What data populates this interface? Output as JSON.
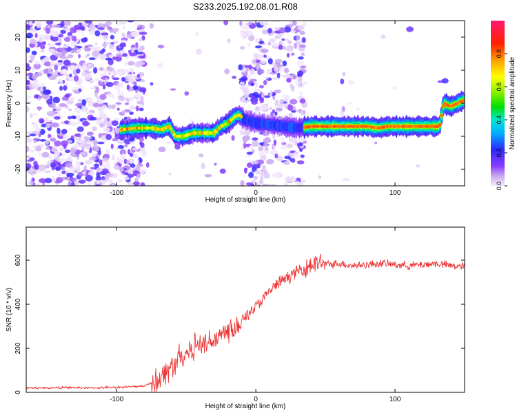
{
  "chart_data": [
    {
      "type": "heatmap",
      "title": "S233.2025.192.08.01.R08",
      "xlabel": "Height of straight line (km)",
      "ylabel": "Frequency (Hz)",
      "xlim": [
        -165,
        150
      ],
      "ylim": [
        -25,
        25
      ],
      "x_ticks": [
        -100,
        0,
        100
      ],
      "y_ticks": [
        -20,
        -10,
        0,
        10,
        20
      ],
      "colorbar": {
        "label": "Normalized spectral amplitude",
        "range": [
          0,
          1
        ],
        "ticks": [
          "0.0",
          "0.2",
          "0.4",
          "0.6",
          "0.8"
        ]
      },
      "ridge": [
        {
          "x": -97,
          "y": -8
        },
        {
          "x": -85,
          "y": -7.5
        },
        {
          "x": -75,
          "y": -7.5
        },
        {
          "x": -68,
          "y": -8
        },
        {
          "x": -62,
          "y": -7
        },
        {
          "x": -58,
          "y": -10
        },
        {
          "x": -52,
          "y": -10
        },
        {
          "x": -45,
          "y": -9
        },
        {
          "x": -38,
          "y": -9
        },
        {
          "x": -30,
          "y": -9
        },
        {
          "x": -25,
          "y": -7
        },
        {
          "x": -20,
          "y": -6
        },
        {
          "x": -15,
          "y": -4
        },
        {
          "x": -12,
          "y": -3.5
        },
        {
          "x": -8,
          "y": -5
        },
        {
          "x": 0,
          "y": -6
        },
        {
          "x": 10,
          "y": -6.5
        },
        {
          "x": 20,
          "y": -7
        },
        {
          "x": 30,
          "y": -7.5
        },
        {
          "x": 40,
          "y": -7
        },
        {
          "x": 50,
          "y": -7
        },
        {
          "x": 60,
          "y": -7
        },
        {
          "x": 70,
          "y": -7
        },
        {
          "x": 80,
          "y": -7
        },
        {
          "x": 88,
          "y": -7.5
        },
        {
          "x": 95,
          "y": -7
        },
        {
          "x": 105,
          "y": -7
        },
        {
          "x": 115,
          "y": -7
        },
        {
          "x": 125,
          "y": -7
        },
        {
          "x": 132,
          "y": -7
        },
        {
          "x": 135,
          "y": 0
        },
        {
          "x": 140,
          "y": -1
        },
        {
          "x": 145,
          "y": 0
        },
        {
          "x": 150,
          "y": 1
        }
      ]
    },
    {
      "type": "line",
      "xlabel": "Height of straight line (km)",
      "ylabel": "SNR (10 * v/v)",
      "xlim": [
        -165,
        150
      ],
      "ylim": [
        0,
        750
      ],
      "x_ticks": [
        -100,
        0,
        100
      ],
      "y_ticks": [
        0,
        200,
        400,
        600
      ],
      "color": "#ee3333",
      "series": [
        {
          "x": [
            -165,
            -150,
            -135,
            -120,
            -105,
            -90,
            -80,
            -75,
            -70,
            -65,
            -60,
            -55,
            -50,
            -45,
            -40,
            -35,
            -30,
            -25,
            -20,
            -15,
            -10,
            -5,
            0,
            5,
            10,
            15,
            20,
            25,
            30,
            35,
            40,
            45,
            50,
            60,
            70,
            80,
            90,
            100,
            110,
            120,
            130,
            140,
            150
          ],
          "y": [
            20,
            20,
            22,
            20,
            22,
            25,
            30,
            45,
            60,
            90,
            120,
            150,
            180,
            200,
            215,
            230,
            245,
            260,
            275,
            300,
            330,
            360,
            390,
            420,
            460,
            490,
            510,
            530,
            550,
            565,
            580,
            585,
            580,
            585,
            575,
            580,
            585,
            580,
            575,
            580,
            585,
            575,
            570
          ]
        }
      ]
    }
  ]
}
